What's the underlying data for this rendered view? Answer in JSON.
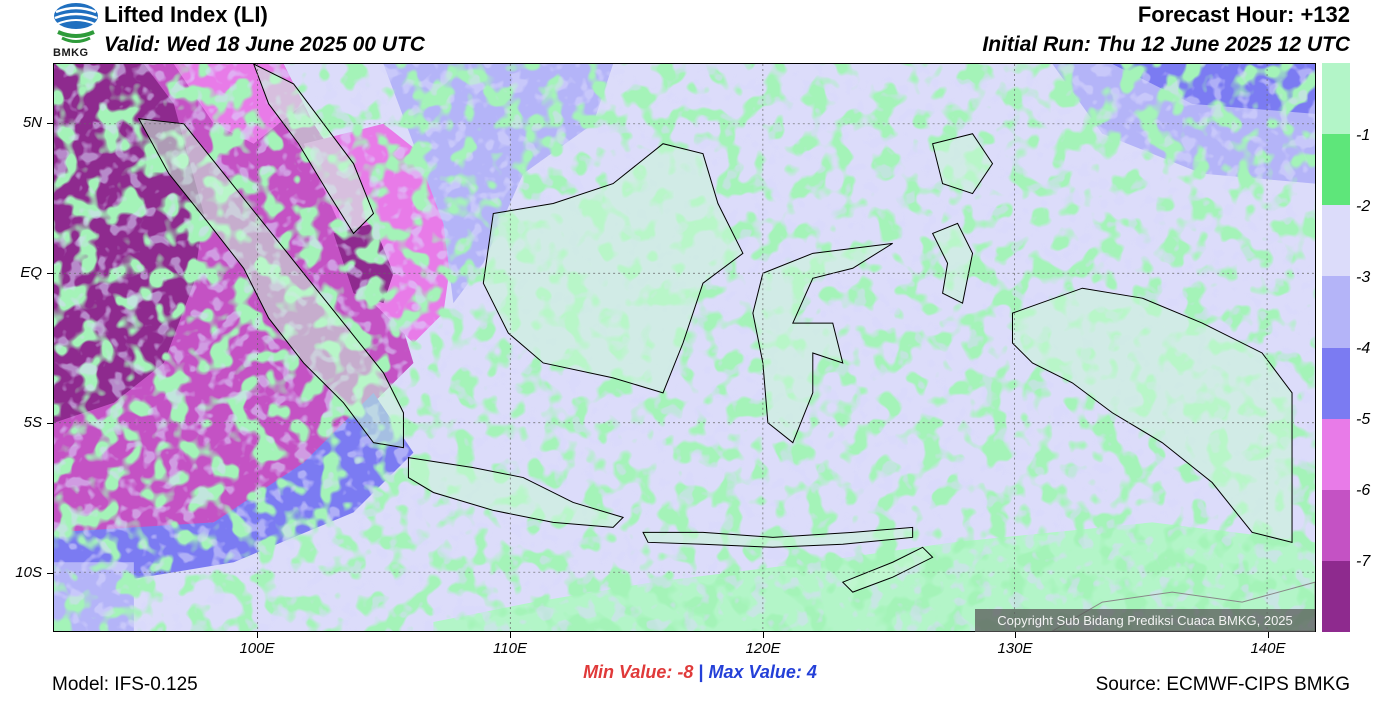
{
  "header": {
    "title": "Lifted Index (LI)",
    "valid": "Valid: Wed 18 June 2025 00 UTC",
    "forecast_hour": "Forecast Hour: +132",
    "initial_run": "Initial Run: Thu 12 June 2025 12 UTC",
    "logo_text": "BMKG"
  },
  "map": {
    "copyright": "Copyright Sub Bidang Prediksi Cuaca BMKG, 2025",
    "lat_labels": [
      "5N",
      "EQ",
      "5S",
      "10S"
    ],
    "lon_labels": [
      "100E",
      "110E",
      "120E",
      "130E",
      "140E"
    ],
    "extent": {
      "lon_min": 92,
      "lon_max": 142,
      "lat_min": -12,
      "lat_max": 7
    }
  },
  "legend": {
    "labels": [
      "-1",
      "-2",
      "-3",
      "-4",
      "-5",
      "-6",
      "-7"
    ],
    "colors": [
      "#b3f5c8",
      "#5ee67a",
      "#dcdcfa",
      "#b4b4f8",
      "#7b7bf2",
      "#e87be8",
      "#c452c4",
      "#8e2a8e"
    ]
  },
  "stats": {
    "min_label": "Min Value:",
    "min_value": "-8",
    "separator": "|",
    "max_label": "Max Value:",
    "max_value": "4"
  },
  "footer": {
    "model": "Model: IFS-0.125",
    "source": "Source: ECMWF-CIPS BMKG"
  }
}
